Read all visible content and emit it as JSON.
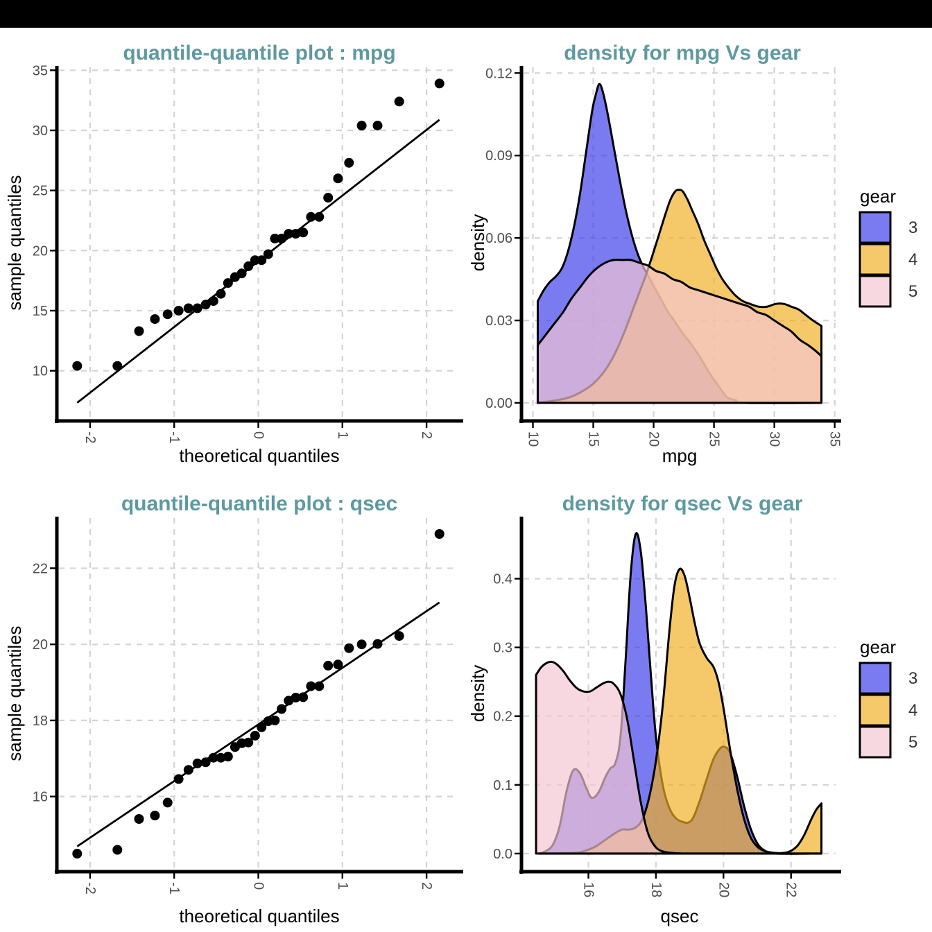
{
  "page": {
    "top_bar_color": "#000000",
    "background": "#ffffff",
    "title_color": "#5E99A0",
    "grid_color": "#D4D4D4",
    "tick_text_color": "#4D4D4D"
  },
  "chart_data": [
    {
      "id": "qq_mpg",
      "type": "scatter",
      "title": "quantile-quantile plot : mpg",
      "xlabel": "theoretical quantiles",
      "ylabel": "sample quantiles",
      "xlim": [
        -2.37,
        2.37
      ],
      "ylim": [
        6.0,
        35.25
      ],
      "xticks": [
        -2,
        -1,
        0,
        1,
        2
      ],
      "xtick_labels": [
        "-2",
        "-1",
        "0",
        "1",
        "2"
      ],
      "yticks": [
        10,
        15,
        20,
        25,
        30,
        35
      ],
      "ytick_labels": [
        "10",
        "15",
        "20",
        "25",
        "30",
        "35"
      ],
      "grid": true,
      "points_x": [
        -2.153,
        -1.675,
        -1.418,
        -1.229,
        -1.078,
        -0.947,
        -0.83,
        -0.724,
        -0.626,
        -0.533,
        -0.445,
        -0.36,
        -0.277,
        -0.197,
        -0.118,
        -0.039,
        0.039,
        0.118,
        0.197,
        0.277,
        0.36,
        0.445,
        0.533,
        0.626,
        0.724,
        0.83,
        0.947,
        1.078,
        1.229,
        1.418,
        1.675,
        2.153
      ],
      "points_y": [
        10.4,
        10.4,
        13.3,
        14.3,
        14.7,
        15.0,
        15.2,
        15.2,
        15.5,
        15.8,
        16.4,
        17.3,
        17.8,
        18.1,
        18.7,
        19.2,
        19.2,
        19.7,
        21.0,
        21.0,
        21.4,
        21.4,
        21.5,
        22.8,
        22.8,
        24.4,
        26.0,
        27.3,
        30.4,
        30.4,
        32.4,
        33.9
      ],
      "ref_line": {
        "x1": -2.153,
        "y1": 7.34,
        "x2": 2.153,
        "y2": 30.88
      }
    },
    {
      "id": "density_mpg",
      "type": "density",
      "title": "density for mpg Vs gear",
      "xlabel": "mpg",
      "ylabel": "density",
      "xlim": [
        9.225,
        35.075
      ],
      "ylim": [
        -0.0058,
        0.1221
      ],
      "xticks": [
        10,
        15,
        20,
        25,
        30,
        35
      ],
      "xtick_labels": [
        "10",
        "15",
        "20",
        "25",
        "30",
        "35"
      ],
      "yticks": [
        0,
        0.03,
        0.06,
        0.09,
        0.12
      ],
      "ytick_labels": [
        "0.00",
        "0.03",
        "0.06",
        "0.09",
        "0.12"
      ],
      "grid": true,
      "legend": {
        "title": "gear",
        "entries": [
          {
            "label": "3",
            "color": "#3C3CEA"
          },
          {
            "label": "4",
            "color": "#F0AE22"
          },
          {
            "label": "5",
            "color": "#F5C6D2"
          }
        ]
      },
      "fill_opacity": 0.68,
      "series": [
        {
          "name": "3",
          "fill": "#3C3CEA",
          "x": [
            10.4,
            10.9,
            11.4,
            11.9,
            12.4,
            12.9,
            13.4,
            13.9,
            14.4,
            14.9,
            15.2,
            15.5,
            15.8,
            16.2,
            16.7,
            17.2,
            17.7,
            18.2,
            18.7,
            19.2,
            19.7,
            20.2,
            20.7,
            21.2,
            21.7,
            22.3,
            23.0,
            23.8,
            24.6,
            25.4,
            26.1,
            26.8,
            27.5,
            33.9
          ],
          "y": [
            0.037,
            0.041,
            0.044,
            0.046,
            0.049,
            0.055,
            0.064,
            0.076,
            0.091,
            0.106,
            0.112,
            0.116,
            0.113,
            0.105,
            0.093,
            0.081,
            0.07,
            0.061,
            0.054,
            0.049,
            0.045,
            0.041,
            0.037,
            0.033,
            0.03,
            0.026,
            0.022,
            0.017,
            0.011,
            0.006,
            0.002,
            0.001,
            0,
            0
          ]
        },
        {
          "name": "4",
          "fill": "#F0AE22",
          "x": [
            10.4,
            12.0,
            13.0,
            14.0,
            15.0,
            16.0,
            16.8,
            17.6,
            18.2,
            18.8,
            19.4,
            20.0,
            20.5,
            21.0,
            21.4,
            21.8,
            22.1,
            22.4,
            22.8,
            23.2,
            23.7,
            24.2,
            24.7,
            25.2,
            25.7,
            26.2,
            26.8,
            27.4,
            28.0,
            28.7,
            29.4,
            30.1,
            30.8,
            31.4,
            32.0,
            32.6,
            33.2,
            33.9
          ],
          "y": [
            0,
            0.001,
            0.002,
            0.004,
            0.007,
            0.012,
            0.018,
            0.026,
            0.033,
            0.04,
            0.047,
            0.055,
            0.062,
            0.069,
            0.074,
            0.077,
            0.0775,
            0.077,
            0.074,
            0.07,
            0.065,
            0.059,
            0.054,
            0.049,
            0.045,
            0.042,
            0.039,
            0.037,
            0.036,
            0.035,
            0.035,
            0.036,
            0.036,
            0.035,
            0.034,
            0.032,
            0.03,
            0.028
          ]
        },
        {
          "name": "5",
          "fill": "#F5C6D2",
          "x": [
            10.4,
            11.1,
            11.8,
            12.5,
            13.2,
            13.9,
            14.6,
            15.3,
            16.0,
            16.7,
            17.4,
            18.1,
            18.8,
            19.5,
            20.2,
            20.9,
            21.6,
            22.3,
            23.0,
            23.7,
            24.4,
            25.1,
            25.8,
            26.5,
            27.2,
            27.9,
            28.6,
            29.3,
            30.0,
            30.7,
            31.4,
            32.1,
            32.8,
            33.4,
            33.9
          ],
          "y": [
            0.021,
            0.025,
            0.029,
            0.033,
            0.038,
            0.042,
            0.046,
            0.049,
            0.051,
            0.052,
            0.052,
            0.052,
            0.051,
            0.05,
            0.048,
            0.047,
            0.045,
            0.044,
            0.042,
            0.041,
            0.04,
            0.039,
            0.038,
            0.037,
            0.036,
            0.035,
            0.033,
            0.032,
            0.03,
            0.028,
            0.026,
            0.023,
            0.021,
            0.019,
            0.017
          ]
        }
      ]
    },
    {
      "id": "qq_qsec",
      "type": "scatter",
      "title": "quantile-quantile plot : qsec",
      "xlabel": "theoretical quantiles",
      "ylabel": "sample quantiles",
      "xlim": [
        -2.37,
        2.37
      ],
      "ylim": [
        14.08,
        23.32
      ],
      "xticks": [
        -2,
        -1,
        0,
        1,
        2
      ],
      "xtick_labels": [
        "-2",
        "-1",
        "0",
        "1",
        "2"
      ],
      "yticks": [
        16,
        18,
        20,
        22
      ],
      "ytick_labels": [
        "16",
        "18",
        "20",
        "22"
      ],
      "grid": true,
      "points_x": [
        -2.153,
        -1.675,
        -1.418,
        -1.229,
        -1.078,
        -0.947,
        -0.83,
        -0.724,
        -0.626,
        -0.533,
        -0.445,
        -0.36,
        -0.277,
        -0.197,
        -0.118,
        -0.039,
        0.039,
        0.118,
        0.197,
        0.277,
        0.36,
        0.445,
        0.533,
        0.626,
        0.724,
        0.83,
        0.947,
        1.078,
        1.229,
        1.418,
        1.675,
        2.153
      ],
      "points_y": [
        14.5,
        14.6,
        15.41,
        15.5,
        15.84,
        16.46,
        16.7,
        16.87,
        16.9,
        17.02,
        17.02,
        17.05,
        17.3,
        17.4,
        17.42,
        17.6,
        17.82,
        17.98,
        18.0,
        18.3,
        18.52,
        18.6,
        18.61,
        18.9,
        18.9,
        19.44,
        19.47,
        19.9,
        20.0,
        20.01,
        20.22,
        22.9
      ],
      "ref_line": {
        "x1": -2.153,
        "y1": 14.69,
        "x2": 2.153,
        "y2": 21.1
      }
    },
    {
      "id": "density_qsec",
      "type": "density",
      "title": "density for qsec Vs gear",
      "xlabel": "qsec",
      "ylabel": "density",
      "xlim": [
        14.08,
        23.32
      ],
      "ylim": [
        -0.0233,
        0.4883
      ],
      "xticks": [
        16,
        18,
        20,
        22
      ],
      "xtick_labels": [
        "16",
        "18",
        "20",
        "22"
      ],
      "yticks": [
        0,
        0.1,
        0.2,
        0.3,
        0.4
      ],
      "ytick_labels": [
        "0.0",
        "0.1",
        "0.2",
        "0.3",
        "0.4"
      ],
      "grid": true,
      "legend": {
        "title": "gear",
        "entries": [
          {
            "label": "3",
            "color": "#3C3CEA"
          },
          {
            "label": "4",
            "color": "#F0AE22"
          },
          {
            "label": "5",
            "color": "#F5C6D2"
          }
        ]
      },
      "fill_opacity": 0.68,
      "series": [
        {
          "name": "3",
          "fill": "#3C3CEA",
          "x": [
            14.55,
            14.75,
            14.95,
            15.15,
            15.35,
            15.55,
            15.75,
            15.95,
            16.1,
            16.3,
            16.5,
            16.65,
            16.8,
            16.95,
            17.1,
            17.25,
            17.4,
            17.55,
            17.7,
            17.85,
            18.0,
            18.2,
            18.4,
            18.6,
            18.8,
            18.95,
            19.1,
            19.3,
            19.5,
            19.7,
            19.9,
            20.05,
            20.2,
            20.4,
            20.6,
            20.8,
            21.0,
            21.2,
            21.5,
            22.9
          ],
          "y": [
            0,
            0.004,
            0.013,
            0.04,
            0.09,
            0.121,
            0.117,
            0.094,
            0.081,
            0.089,
            0.111,
            0.124,
            0.132,
            0.17,
            0.28,
            0.405,
            0.465,
            0.44,
            0.36,
            0.26,
            0.17,
            0.1,
            0.066,
            0.051,
            0.046,
            0.045,
            0.052,
            0.077,
            0.108,
            0.137,
            0.153,
            0.155,
            0.146,
            0.113,
            0.071,
            0.037,
            0.015,
            0.005,
            0,
            0
          ]
        },
        {
          "name": "4",
          "fill": "#F0AE22",
          "x": [
            14.6,
            15.6,
            15.9,
            16.2,
            16.5,
            16.8,
            17.0,
            17.2,
            17.4,
            17.6,
            17.8,
            18.0,
            18.2,
            18.4,
            18.55,
            18.7,
            18.85,
            19.0,
            19.15,
            19.3,
            19.5,
            19.7,
            19.85,
            20.0,
            20.2,
            20.4,
            20.6,
            20.8,
            21.0,
            21.2,
            21.5,
            21.8,
            22.0,
            22.2,
            22.4,
            22.6,
            22.75,
            22.9
          ],
          "y": [
            0,
            0.001,
            0.004,
            0.01,
            0.02,
            0.03,
            0.035,
            0.035,
            0.038,
            0.05,
            0.082,
            0.135,
            0.215,
            0.325,
            0.39,
            0.414,
            0.404,
            0.372,
            0.335,
            0.305,
            0.285,
            0.272,
            0.25,
            0.212,
            0.15,
            0.095,
            0.052,
            0.024,
            0.01,
            0.004,
            0.001,
            0.001,
            0.004,
            0.012,
            0.028,
            0.05,
            0.064,
            0.073
          ]
        },
        {
          "name": "5",
          "fill": "#F5C6D2",
          "x": [
            14.45,
            14.6,
            14.75,
            14.9,
            15.05,
            15.25,
            15.45,
            15.65,
            15.85,
            16.05,
            16.25,
            16.45,
            16.6,
            16.75,
            16.95,
            17.15,
            17.35,
            17.55,
            17.75,
            17.95,
            18.15,
            18.45,
            18.8,
            19.2,
            22.9
          ],
          "y": [
            0.26,
            0.271,
            0.277,
            0.279,
            0.276,
            0.266,
            0.252,
            0.241,
            0.236,
            0.236,
            0.242,
            0.248,
            0.25,
            0.247,
            0.232,
            0.195,
            0.135,
            0.075,
            0.032,
            0.012,
            0.004,
            0.001,
            0,
            0,
            0
          ]
        }
      ]
    }
  ]
}
